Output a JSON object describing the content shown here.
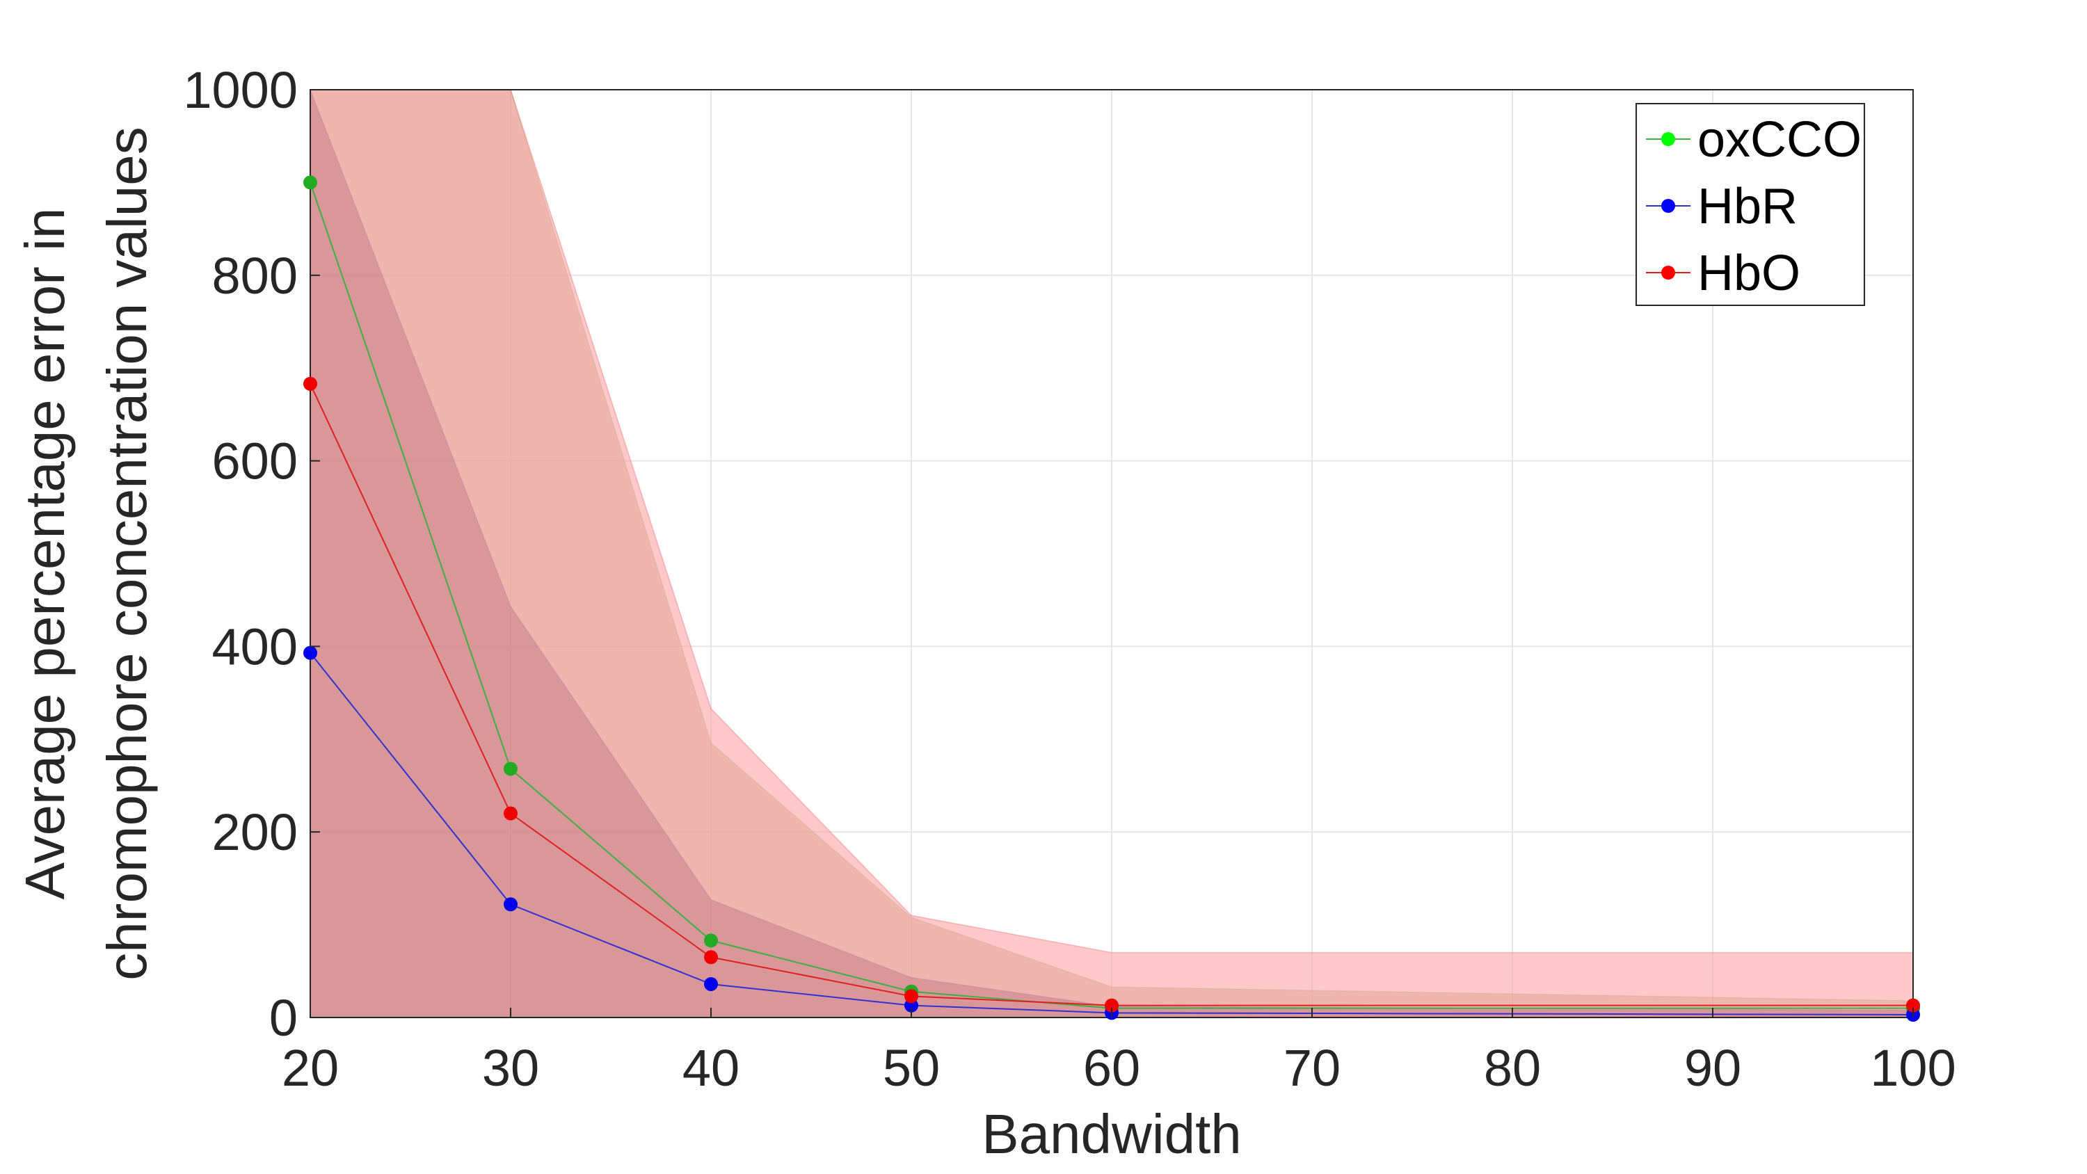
{
  "chart_data": {
    "type": "line",
    "title": "",
    "xlabel": "Bandwidth",
    "ylabel_lines": [
      "Average percentage error in",
      "chromophore concentration values"
    ],
    "x": [
      20,
      30,
      40,
      50,
      60,
      100
    ],
    "xticks": [
      20,
      30,
      40,
      50,
      60,
      70,
      80,
      90,
      100
    ],
    "yticks": [
      0,
      200,
      400,
      600,
      800,
      1000
    ],
    "xlim": [
      20,
      100
    ],
    "ylim": [
      0,
      1000
    ],
    "grid": true,
    "legend_position": "top-right",
    "series": [
      {
        "name": "oxCCO",
        "color": "#00ff00",
        "line_color": "#3cb043",
        "marker_color": "#22aa22",
        "values": [
          900,
          268,
          83,
          28,
          10,
          10
        ],
        "band_upper": [
          1000,
          1000,
          296,
          108,
          33,
          18
        ],
        "band_lower": [
          0,
          0,
          0,
          0,
          0,
          0
        ],
        "band_color": "#b5a56a",
        "band_opacity": 0.45
      },
      {
        "name": "HbR",
        "color": "#0000ff",
        "line_color": "#3030d0",
        "marker_color": "#0000ee",
        "values": [
          393,
          122,
          36,
          13,
          5,
          3
        ],
        "band_upper": [
          1000,
          443,
          127,
          43,
          12,
          8
        ],
        "band_lower": [
          0,
          0,
          0,
          0,
          0,
          0
        ],
        "band_color": "#6a4060",
        "band_opacity": 0.45
      },
      {
        "name": "HbO",
        "color": "#ff0000",
        "line_color": "#e02020",
        "marker_color": "#ee0000",
        "values": [
          683,
          220,
          65,
          23,
          13,
          13
        ],
        "band_upper": [
          1000,
          1000,
          333,
          110,
          70,
          70
        ],
        "band_lower": [
          0,
          0,
          0,
          0,
          0,
          0
        ],
        "band_color": "#ff9aa0",
        "band_opacity": 0.55
      }
    ]
  }
}
